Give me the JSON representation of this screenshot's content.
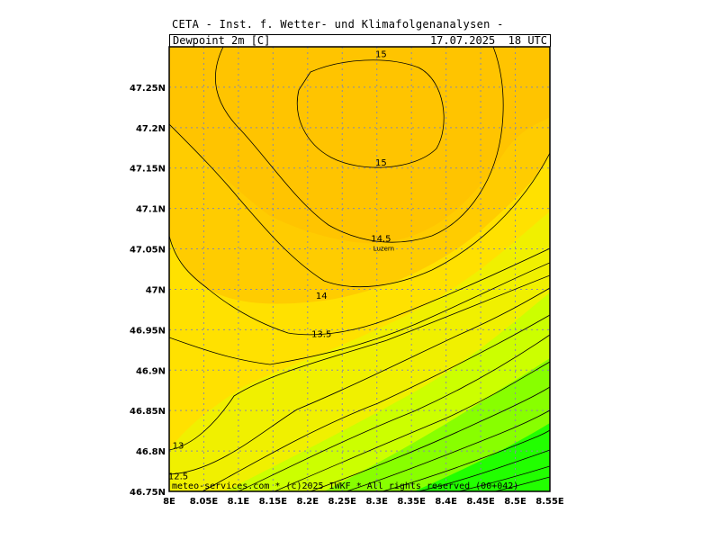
{
  "header": {
    "title": "CETA - Inst. f. Wetter- und Klimafolgenanalysen -",
    "variable": "Dewpoint_2m_[C]",
    "datetime": "17.07.2025  18 UTC"
  },
  "footer": {
    "credit": "meteo-services.com * (c)2025 IWKF * All rights reserved (00+042)"
  },
  "place": {
    "name": "Luzern",
    "lon": 8.31,
    "lat": 47.05
  },
  "colors": {
    "band_15_plus": "#ffc400",
    "band_14_15": "#ffcc00",
    "band_13_14": "#ffe100",
    "band_12_13": "#f0f000",
    "green_light": "#ccff00",
    "green_dark": "#22ff00",
    "grid": "#8a8aa8"
  },
  "chart_data": {
    "type": "contour-map",
    "x_axis": {
      "range": [
        8.0,
        8.55
      ],
      "ticks": [
        "8E",
        "8.05E",
        "8.1E",
        "8.15E",
        "8.2E",
        "8.25E",
        "8.3E",
        "8.35E",
        "8.4E",
        "8.45E",
        "8.5E",
        "8.55E"
      ]
    },
    "y_axis": {
      "range": [
        46.75,
        47.3
      ],
      "ticks": [
        "46.75N",
        "46.8N",
        "46.85N",
        "46.9N",
        "46.95N",
        "47N",
        "47.05N",
        "47.1N",
        "47.15N",
        "47.2N",
        "47.25N"
      ]
    },
    "grid": true,
    "contour_labels": [
      {
        "text": "15",
        "lon": 8.306,
        "lat": 47.287
      },
      {
        "text": "15",
        "lon": 8.306,
        "lat": 47.153
      },
      {
        "text": "14.5",
        "lon": 8.306,
        "lat": 47.059
      },
      {
        "text": "14",
        "lon": 8.22,
        "lat": 46.988
      },
      {
        "text": "13.5",
        "lon": 8.22,
        "lat": 46.941
      },
      {
        "text": "13",
        "lon": 8.013,
        "lat": 46.803
      },
      {
        "text": "12.5",
        "lon": 8.013,
        "lat": 46.765
      }
    ]
  }
}
